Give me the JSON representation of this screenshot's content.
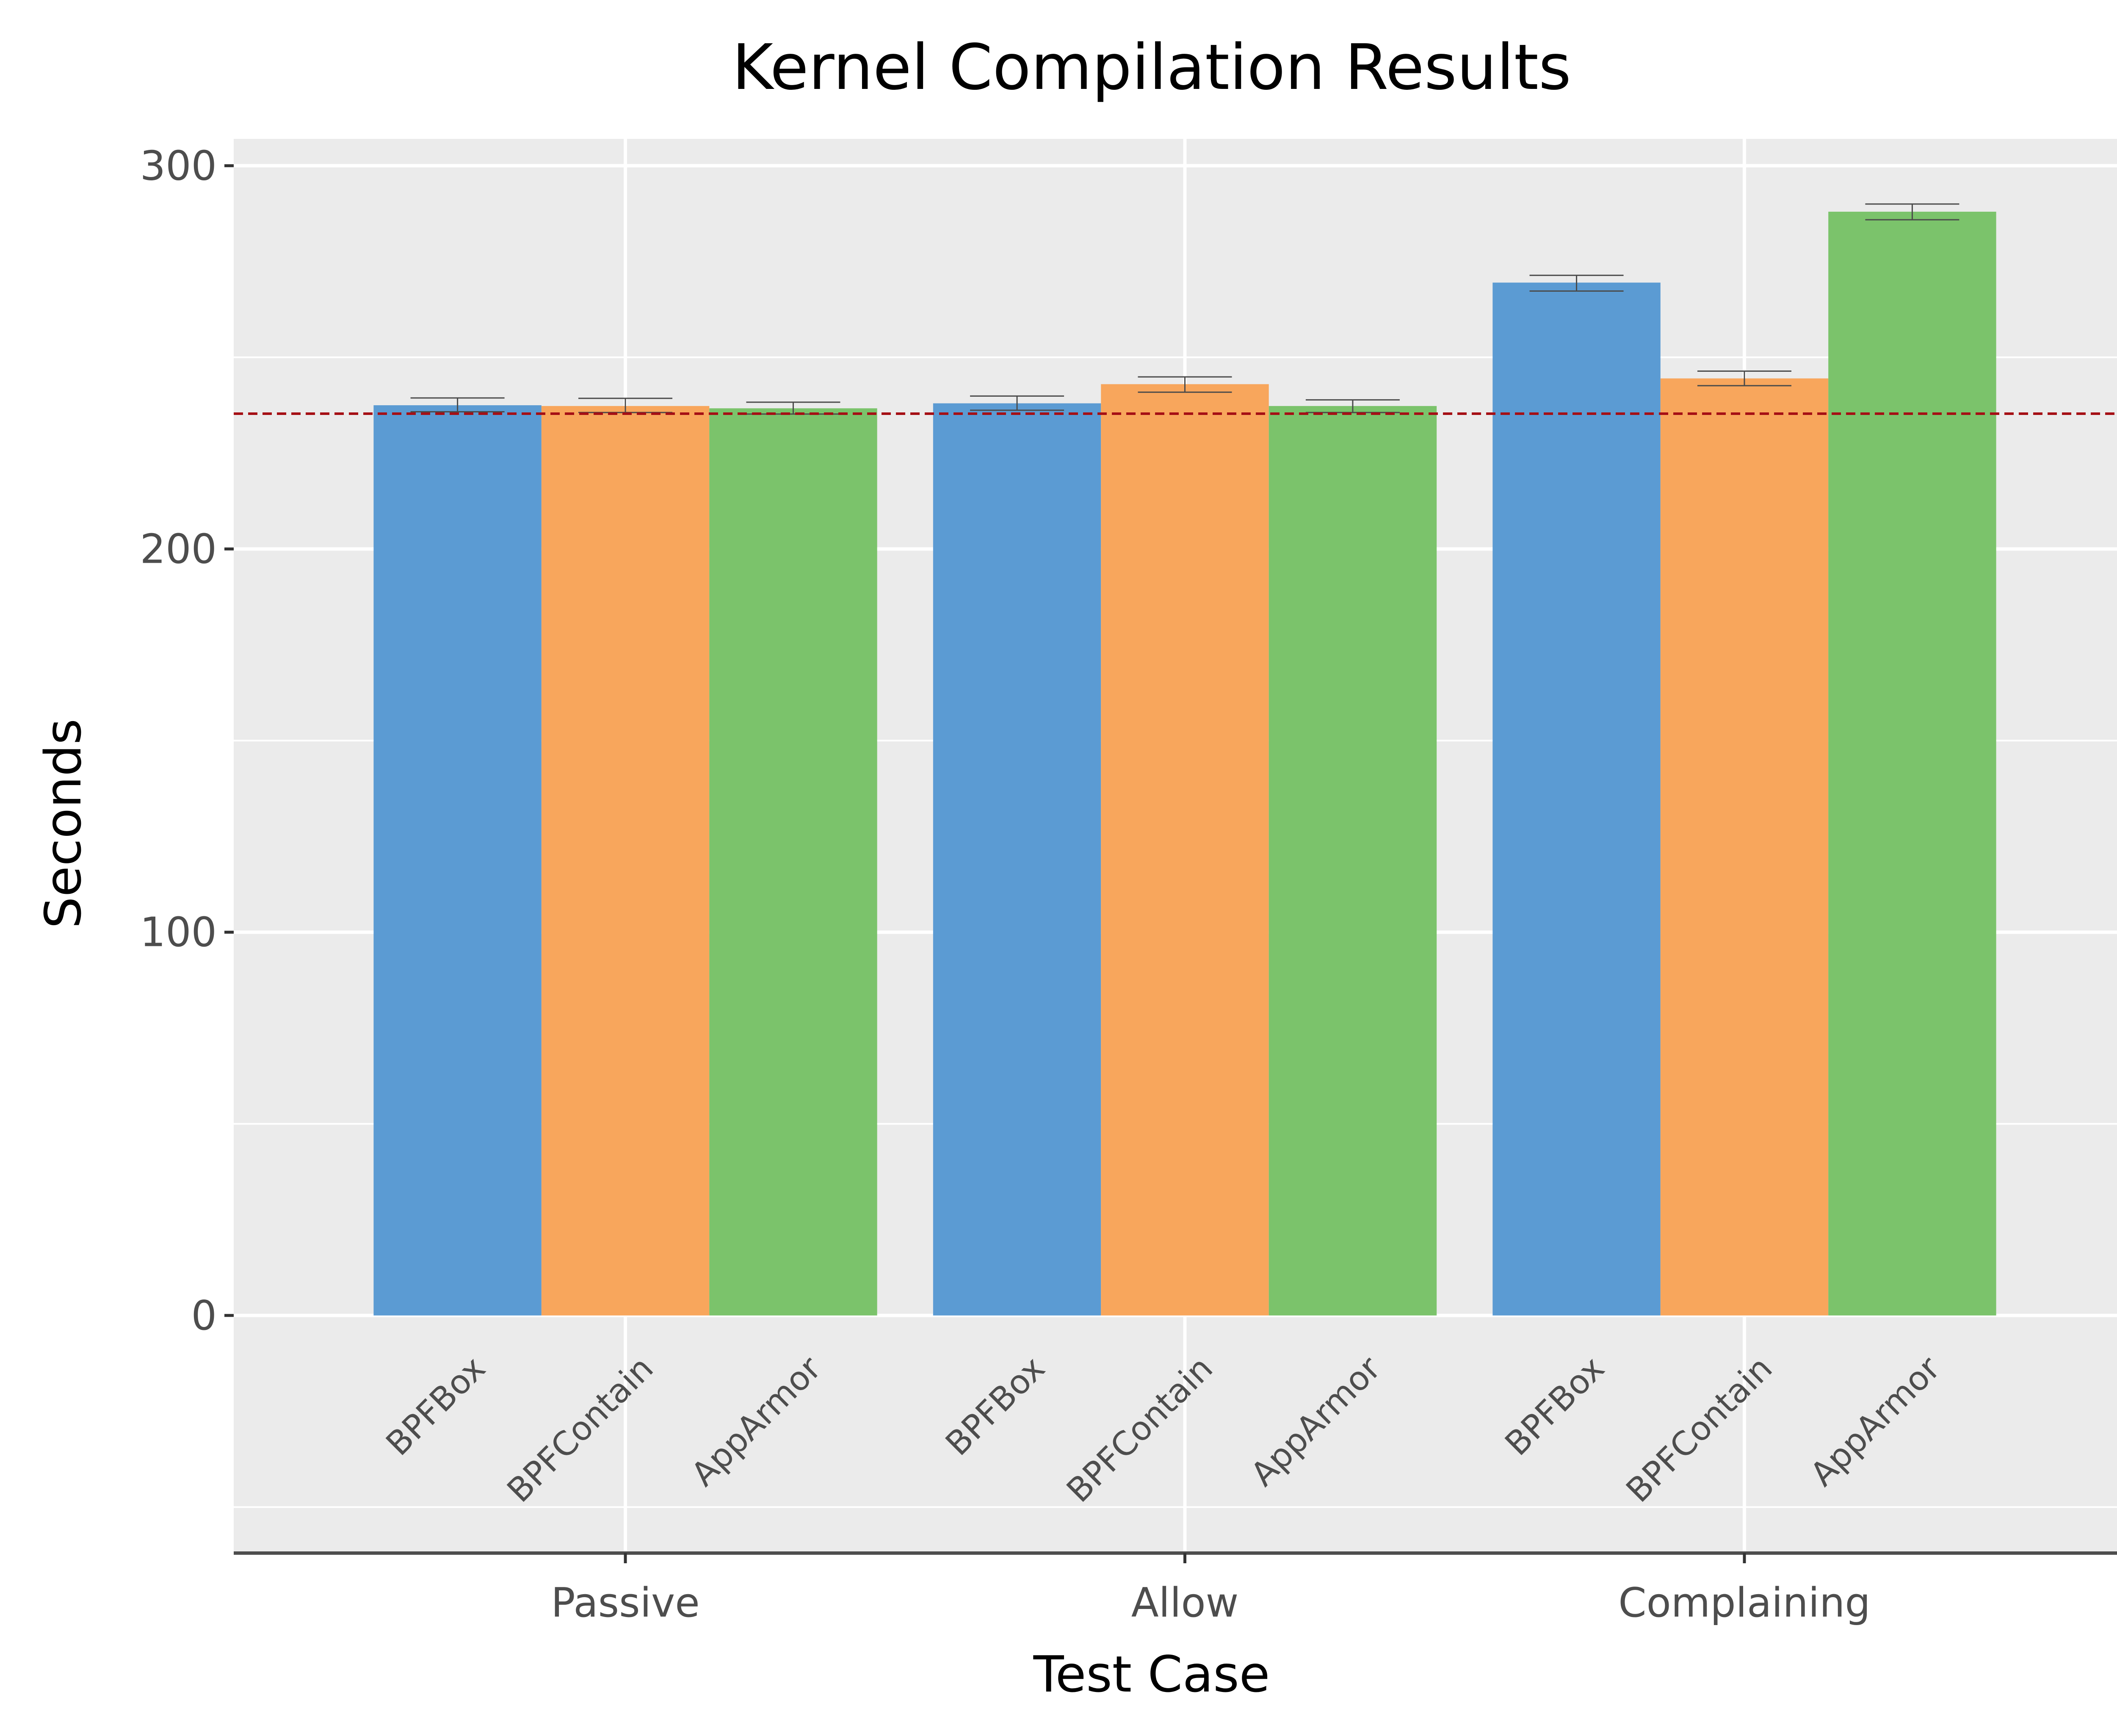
{
  "chart_data": {
    "type": "bar",
    "title": "Kernel Compilation Results",
    "xlabel": "Test Case",
    "ylabel": "Seconds",
    "ylim": [
      -62,
      307
    ],
    "yticks": [
      0,
      100,
      200,
      300
    ],
    "categories": [
      "Passive",
      "Allow",
      "Complaining"
    ],
    "series": [
      {
        "name": "BPFBox",
        "color": "#5b9bd3",
        "values": [
          237.5,
          238.0,
          269.5
        ],
        "error": [
          [
            235.8,
            239.4
          ],
          [
            236.2,
            239.9
          ],
          [
            267.3,
            271.4
          ]
        ]
      },
      {
        "name": "BPFContain",
        "color": "#f8a65c",
        "values": [
          237.3,
          243.0,
          244.5
        ],
        "error": [
          [
            235.6,
            239.3
          ],
          [
            240.9,
            244.9
          ],
          [
            242.6,
            246.4
          ]
        ]
      },
      {
        "name": "AppArmor",
        "color": "#7bc36b",
        "values": [
          236.7,
          237.3,
          288.0
        ],
        "error": [
          [
            235.2,
            238.3
          ],
          [
            235.6,
            238.9
          ],
          [
            285.9,
            290.0
          ]
        ]
      }
    ],
    "reference_line": {
      "value": 235.3,
      "color": "#a50f15",
      "style": "dashed"
    },
    "grid": true,
    "legend": "none"
  }
}
